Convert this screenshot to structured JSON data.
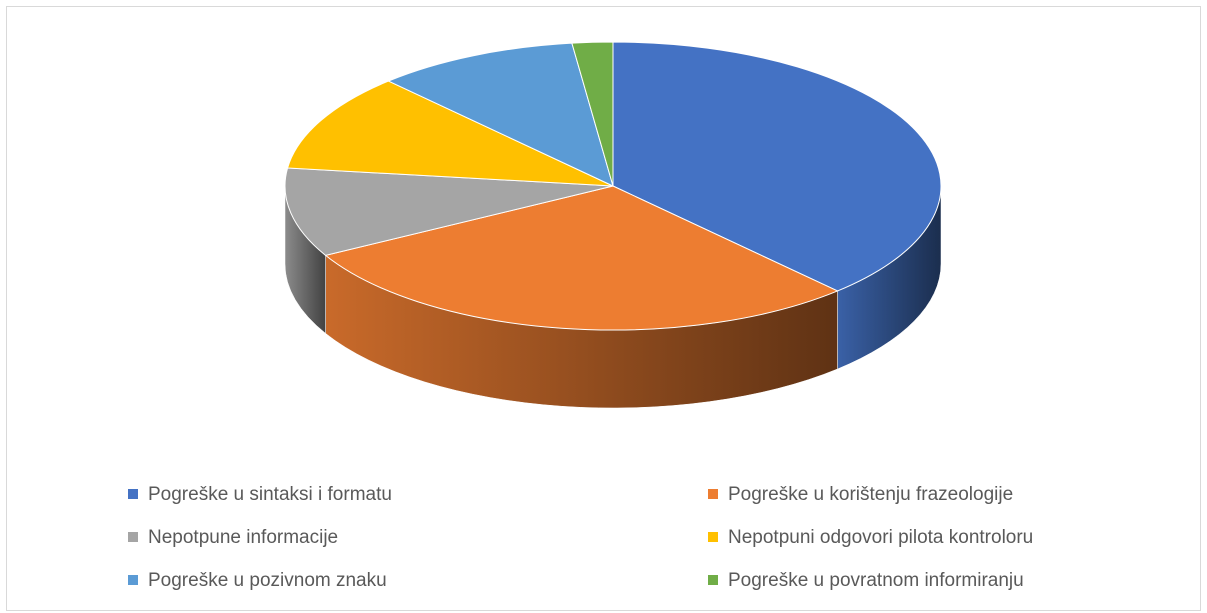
{
  "chart_data": {
    "type": "pie3d",
    "categories": [
      "Pogreške u sintaksi i formatu",
      "Pogreške u korištenju frazeologije",
      "Nepotpune informacije",
      "Nepotpuni odgovori pilota kontroloru",
      "Pogreške u pozivnom znaku",
      "Pogreške u povratnom informiranju"
    ],
    "values": [
      38,
      29,
      10,
      11,
      10,
      2
    ],
    "colors": [
      "#4472c4",
      "#ed7d31",
      "#a5a5a5",
      "#ffc000",
      "#5b9bd5",
      "#70ad47"
    ],
    "legend": "bottom"
  }
}
